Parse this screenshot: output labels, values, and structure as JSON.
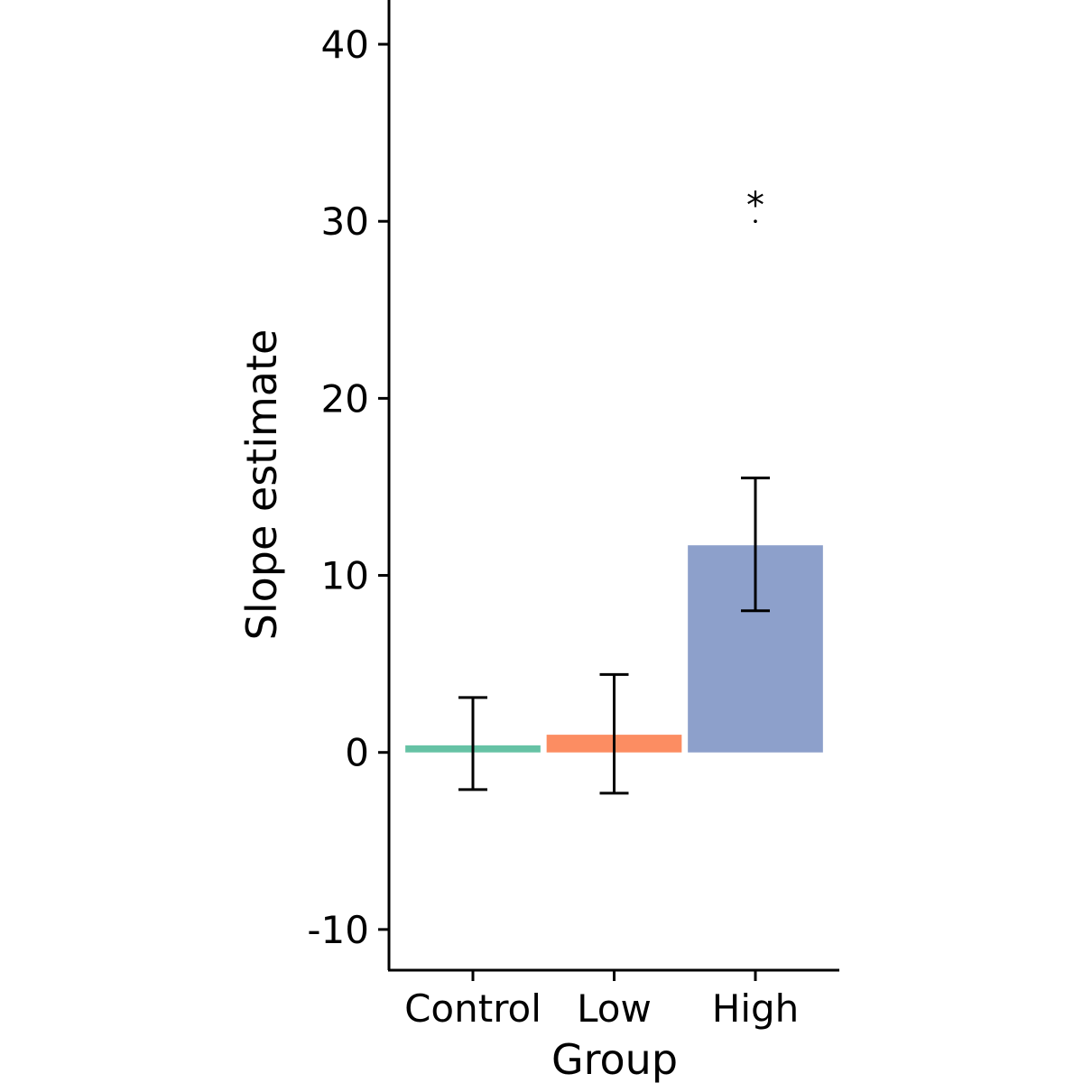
{
  "chart_data": {
    "type": "bar",
    "title": "",
    "xlabel": "Group",
    "ylabel": "Slope estimate",
    "categories": [
      "Control",
      "Low",
      "High"
    ],
    "values": [
      0.4,
      1.0,
      11.7
    ],
    "error_bars": [
      {
        "lower": -2.1,
        "upper": 3.1
      },
      {
        "lower": -2.3,
        "upper": 4.4
      },
      {
        "lower": 8.0,
        "upper": 15.5
      }
    ],
    "colors": [
      "#66c2a5",
      "#fc8d62",
      "#8da0cb"
    ],
    "ylim": [
      -12.3,
      42.5
    ],
    "yticks": [
      -10,
      0,
      10,
      20,
      30,
      40
    ],
    "ytick_labels": [
      "-10",
      "0",
      "10",
      "20",
      "30",
      "40"
    ],
    "annotations": [
      {
        "category": "High",
        "text": "*",
        "y": 30
      }
    ],
    "grid": false,
    "legend": "none"
  }
}
